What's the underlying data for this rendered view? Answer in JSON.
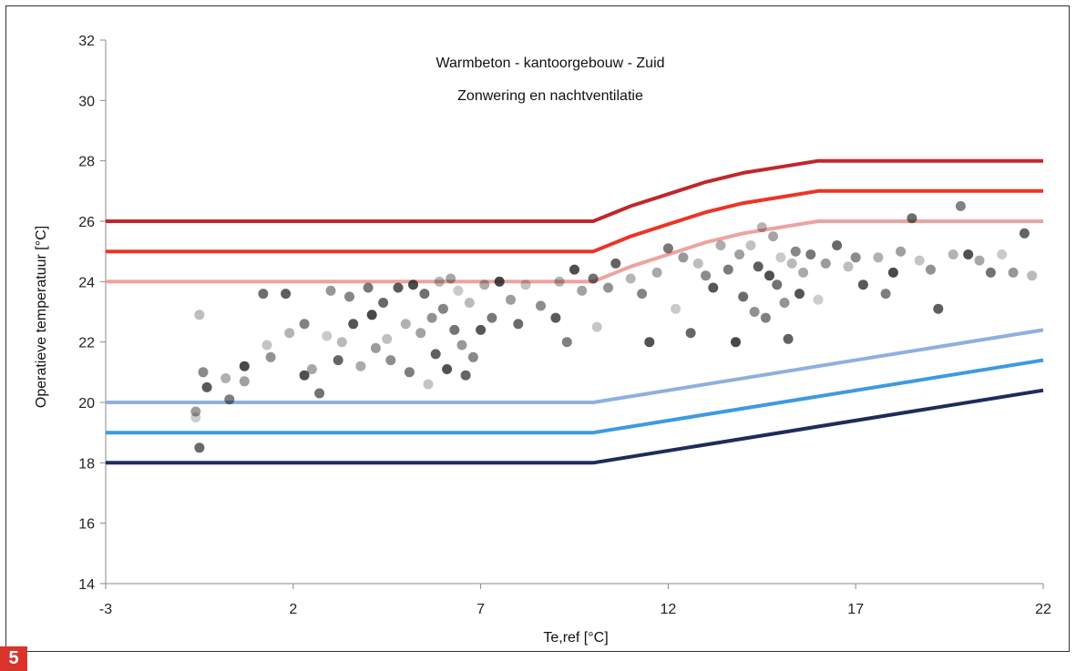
{
  "figure_badge": "5",
  "badge_color": "#d9342b",
  "chart_data": {
    "type": "scatter",
    "title": "Warmbeton - kantoorgebouw - Zuid",
    "subtitle": "Zonwering en nachtventilatie",
    "xlabel": "Te,ref [°C]",
    "ylabel": "Operatieve temperatuur [°C]",
    "xlim": [
      -3,
      22
    ],
    "ylim": [
      14,
      32
    ],
    "xticks": [
      -3,
      2,
      7,
      12,
      17,
      22
    ],
    "yticks": [
      14,
      16,
      18,
      20,
      22,
      24,
      26,
      28,
      30,
      32
    ],
    "grid": false,
    "legend": "none",
    "limit_lines": [
      {
        "color": "#c0272d",
        "points": [
          [
            -3,
            26
          ],
          [
            10,
            26
          ],
          [
            11,
            26.5
          ],
          [
            12,
            26.9
          ],
          [
            13,
            27.3
          ],
          [
            14,
            27.6
          ],
          [
            15,
            27.8
          ],
          [
            16,
            28
          ],
          [
            22,
            28
          ]
        ]
      },
      {
        "color": "#ec3524",
        "points": [
          [
            -3,
            25
          ],
          [
            10,
            25
          ],
          [
            11,
            25.5
          ],
          [
            12,
            25.9
          ],
          [
            13,
            26.3
          ],
          [
            14,
            26.6
          ],
          [
            15,
            26.8
          ],
          [
            16,
            27
          ],
          [
            22,
            27
          ]
        ]
      },
      {
        "color": "#eda3a0",
        "points": [
          [
            -3,
            24
          ],
          [
            10,
            24
          ],
          [
            11,
            24.5
          ],
          [
            12,
            24.9
          ],
          [
            13,
            25.3
          ],
          [
            14,
            25.6
          ],
          [
            15,
            25.8
          ],
          [
            16,
            26
          ],
          [
            22,
            26
          ]
        ]
      },
      {
        "color": "#8fb0de",
        "points": [
          [
            -3,
            20
          ],
          [
            10,
            20
          ],
          [
            22,
            22.4
          ]
        ]
      },
      {
        "color": "#3d9ae0",
        "points": [
          [
            -3,
            19
          ],
          [
            10,
            19
          ],
          [
            22,
            21.4
          ]
        ]
      },
      {
        "color": "#1e2c5c",
        "points": [
          [
            -3,
            18
          ],
          [
            10,
            18
          ],
          [
            22,
            20.4
          ]
        ]
      }
    ],
    "points": [
      [
        -0.6,
        19.5
      ],
      [
        -0.6,
        19.7
      ],
      [
        -0.5,
        18.5
      ],
      [
        -0.5,
        22.9
      ],
      [
        -0.4,
        21.0
      ],
      [
        -0.3,
        20.5
      ],
      [
        0.2,
        20.8
      ],
      [
        0.3,
        20.1
      ],
      [
        0.7,
        21.2
      ],
      [
        0.7,
        20.7
      ],
      [
        1.2,
        23.6
      ],
      [
        1.3,
        21.9
      ],
      [
        1.4,
        21.5
      ],
      [
        1.8,
        23.6
      ],
      [
        1.9,
        22.3
      ],
      [
        2.3,
        22.6
      ],
      [
        2.3,
        20.9
      ],
      [
        2.5,
        21.1
      ],
      [
        2.7,
        20.3
      ],
      [
        2.9,
        22.2
      ],
      [
        3.0,
        23.7
      ],
      [
        3.2,
        21.4
      ],
      [
        3.3,
        22.0
      ],
      [
        3.5,
        23.5
      ],
      [
        3.6,
        22.6
      ],
      [
        3.8,
        21.2
      ],
      [
        4.0,
        23.8
      ],
      [
        4.1,
        22.9
      ],
      [
        4.2,
        21.8
      ],
      [
        4.4,
        23.3
      ],
      [
        4.5,
        22.1
      ],
      [
        4.6,
        21.4
      ],
      [
        4.8,
        23.8
      ],
      [
        5.0,
        22.6
      ],
      [
        5.1,
        21.0
      ],
      [
        5.2,
        23.9
      ],
      [
        5.4,
        22.3
      ],
      [
        5.5,
        23.6
      ],
      [
        5.6,
        20.6
      ],
      [
        5.7,
        22.8
      ],
      [
        5.8,
        21.6
      ],
      [
        5.9,
        24.0
      ],
      [
        6.0,
        23.1
      ],
      [
        6.1,
        21.1
      ],
      [
        6.2,
        24.1
      ],
      [
        6.3,
        22.4
      ],
      [
        6.4,
        23.7
      ],
      [
        6.5,
        21.9
      ],
      [
        6.6,
        20.9
      ],
      [
        6.7,
        23.3
      ],
      [
        6.8,
        21.5
      ],
      [
        7.0,
        22.4
      ],
      [
        7.1,
        23.9
      ],
      [
        7.3,
        22.8
      ],
      [
        7.5,
        24.0
      ],
      [
        7.8,
        23.4
      ],
      [
        8.0,
        22.6
      ],
      [
        8.2,
        23.9
      ],
      [
        8.6,
        23.2
      ],
      [
        9.0,
        22.8
      ],
      [
        9.1,
        24.0
      ],
      [
        9.3,
        22.0
      ],
      [
        9.5,
        24.4
      ],
      [
        9.7,
        23.7
      ],
      [
        10.0,
        24.1
      ],
      [
        10.1,
        22.5
      ],
      [
        10.4,
        23.8
      ],
      [
        10.6,
        24.6
      ],
      [
        11.0,
        24.1
      ],
      [
        11.3,
        23.6
      ],
      [
        11.5,
        22.0
      ],
      [
        11.7,
        24.3
      ],
      [
        12.0,
        25.1
      ],
      [
        12.2,
        23.1
      ],
      [
        12.4,
        24.8
      ],
      [
        12.6,
        22.3
      ],
      [
        12.8,
        24.6
      ],
      [
        13.0,
        24.2
      ],
      [
        13.2,
        23.8
      ],
      [
        13.4,
        25.2
      ],
      [
        13.6,
        24.4
      ],
      [
        13.8,
        22.0
      ],
      [
        13.9,
        24.9
      ],
      [
        14.0,
        23.5
      ],
      [
        14.2,
        25.2
      ],
      [
        14.3,
        23.0
      ],
      [
        14.4,
        24.5
      ],
      [
        14.5,
        25.8
      ],
      [
        14.6,
        22.8
      ],
      [
        14.7,
        24.2
      ],
      [
        14.8,
        25.5
      ],
      [
        14.9,
        23.9
      ],
      [
        15.0,
        24.8
      ],
      [
        15.1,
        23.3
      ],
      [
        15.2,
        22.1
      ],
      [
        15.3,
        24.6
      ],
      [
        15.4,
        25.0
      ],
      [
        15.5,
        23.6
      ],
      [
        15.6,
        24.3
      ],
      [
        15.8,
        24.9
      ],
      [
        16.0,
        23.4
      ],
      [
        16.2,
        24.6
      ],
      [
        16.5,
        25.2
      ],
      [
        16.8,
        24.5
      ],
      [
        17.0,
        24.8
      ],
      [
        17.2,
        23.9
      ],
      [
        17.6,
        24.8
      ],
      [
        17.8,
        23.6
      ],
      [
        18.0,
        24.3
      ],
      [
        18.2,
        25.0
      ],
      [
        18.5,
        26.1
      ],
      [
        18.7,
        24.7
      ],
      [
        19.0,
        24.4
      ],
      [
        19.2,
        23.1
      ],
      [
        19.6,
        24.9
      ],
      [
        19.8,
        26.5
      ],
      [
        20.0,
        24.9
      ],
      [
        20.3,
        24.7
      ],
      [
        20.6,
        24.3
      ],
      [
        20.9,
        24.9
      ],
      [
        21.2,
        24.3
      ],
      [
        21.5,
        25.6
      ],
      [
        21.7,
        24.2
      ]
    ]
  }
}
